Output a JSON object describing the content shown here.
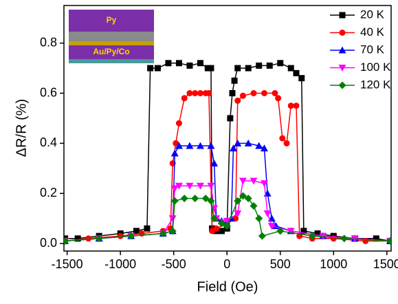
{
  "chart_data": {
    "type": "line",
    "xlabel": "Field (Oe)",
    "ylabel": "ΔR/R (%)",
    "inset_labels": [
      "Py",
      "Au/Py/Co"
    ],
    "xlim": [
      -1530,
      1540
    ],
    "ylim": [
      -0.03,
      0.95
    ],
    "xticks": [
      -1500,
      -1000,
      -500,
      0,
      500,
      1000,
      1500
    ],
    "yticks": [
      {
        "value": 0,
        "label": "0.0"
      },
      0.2,
      0.4,
      0.6,
      0.8
    ],
    "legend": "top-right",
    "series": [
      {
        "name": "20 K",
        "color": "#000000",
        "marker": "square",
        "x": [
          -1520,
          -1400,
          -1200,
          -1000,
          -850,
          -750,
          -720,
          -650,
          -550,
          -450,
          -350,
          -250,
          -180,
          -150,
          -140,
          -100,
          -50,
          0,
          30,
          50,
          70,
          100,
          200,
          300,
          400,
          500,
          600,
          650,
          700,
          720,
          850,
          1000,
          1200,
          1400,
          1530
        ],
        "values": [
          0.02,
          0.02,
          0.03,
          0.04,
          0.05,
          0.06,
          0.7,
          0.7,
          0.72,
          0.72,
          0.71,
          0.72,
          0.7,
          0.7,
          0.06,
          0.05,
          0.05,
          0.06,
          0.5,
          0.6,
          0.65,
          0.7,
          0.7,
          0.71,
          0.71,
          0.72,
          0.7,
          0.68,
          0.66,
          0.05,
          0.04,
          0.03,
          0.02,
          0.02,
          0.01
        ]
      },
      {
        "name": "40 K",
        "color": "#ff0000",
        "marker": "circle",
        "x": [
          -1520,
          -1300,
          -1000,
          -800,
          -600,
          -530,
          -510,
          -480,
          -450,
          -400,
          -350,
          -300,
          -250,
          -200,
          -170,
          -140,
          -100,
          0,
          80,
          100,
          150,
          250,
          350,
          450,
          480,
          520,
          560,
          600,
          650,
          680,
          800,
          1000,
          1300,
          1530
        ],
        "values": [
          0.01,
          0.02,
          0.03,
          0.04,
          0.05,
          0.06,
          0.32,
          0.4,
          0.48,
          0.58,
          0.6,
          0.6,
          0.6,
          0.6,
          0.6,
          0.05,
          0.06,
          0.08,
          0.1,
          0.57,
          0.59,
          0.6,
          0.6,
          0.6,
          0.58,
          0.42,
          0.4,
          0.55,
          0.55,
          0.03,
          0.02,
          0.02,
          0.01,
          0.01
        ]
      },
      {
        "name": "70 K",
        "color": "#0000ff",
        "marker": "triangle-up",
        "x": [
          -1520,
          -1200,
          -900,
          -600,
          -510,
          -490,
          -450,
          -350,
          -250,
          -150,
          -120,
          -100,
          -50,
          0,
          40,
          60,
          100,
          200,
          300,
          350,
          380,
          420,
          460,
          600,
          900,
          1200,
          1530
        ],
        "values": [
          0.01,
          0.02,
          0.03,
          0.04,
          0.05,
          0.36,
          0.39,
          0.39,
          0.39,
          0.39,
          0.32,
          0.1,
          0.09,
          0.08,
          0.1,
          0.38,
          0.4,
          0.4,
          0.39,
          0.38,
          0.2,
          0.1,
          0.07,
          0.05,
          0.03,
          0.02,
          0.01
        ]
      },
      {
        "name": "100 K",
        "color": "#ff00ff",
        "marker": "triangle-down",
        "x": [
          -1520,
          -1200,
          -900,
          -600,
          -510,
          -490,
          -450,
          -350,
          -250,
          -150,
          -120,
          -100,
          0,
          100,
          150,
          250,
          350,
          380,
          420,
          600,
          900,
          1200,
          1530
        ],
        "values": [
          0.01,
          0.02,
          0.03,
          0.04,
          0.1,
          0.22,
          0.23,
          0.23,
          0.23,
          0.23,
          0.14,
          0.1,
          0.09,
          0.12,
          0.25,
          0.25,
          0.24,
          0.12,
          0.07,
          0.05,
          0.03,
          0.02,
          0.01
        ]
      },
      {
        "name": "120 K",
        "color": "#008000",
        "marker": "diamond",
        "x": [
          -1520,
          -1200,
          -900,
          -600,
          -510,
          -490,
          -400,
          -300,
          -200,
          -150,
          -120,
          -50,
          0,
          100,
          150,
          200,
          250,
          300,
          330,
          500,
          800,
          1100,
          1530
        ],
        "values": [
          0.01,
          0.02,
          0.03,
          0.04,
          0.05,
          0.17,
          0.18,
          0.18,
          0.18,
          0.17,
          0.1,
          0.08,
          0.07,
          0.17,
          0.19,
          0.18,
          0.15,
          0.1,
          0.03,
          0.05,
          0.03,
          0.02,
          0.01
        ]
      }
    ]
  }
}
